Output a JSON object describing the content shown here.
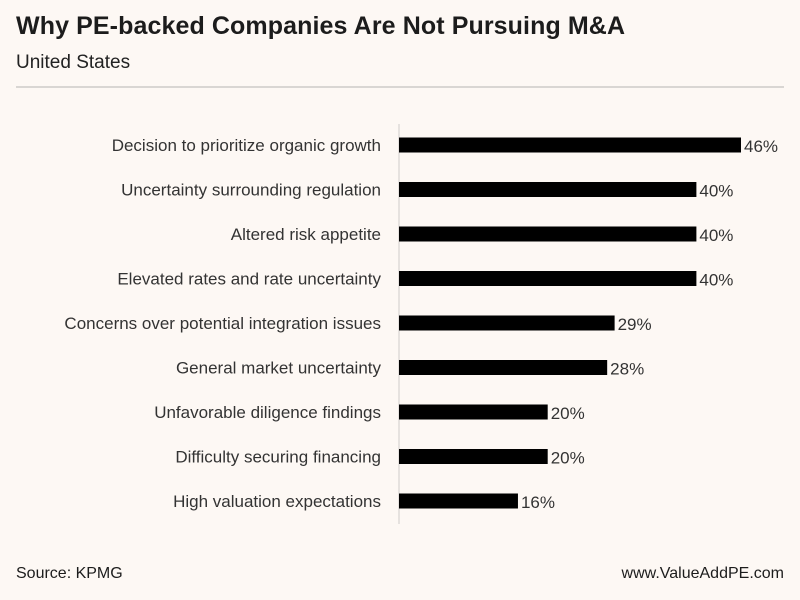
{
  "header": {
    "title": "Why PE-backed Companies Are Not Pursuing M&A",
    "subtitle": "United States"
  },
  "footer": {
    "source": "Source: KPMG",
    "website": "www.ValueAddPE.com"
  },
  "colors": {
    "bar": "#000000",
    "axis": "#d0cdca",
    "text": "#333333",
    "background": "#fdf8f4"
  },
  "chart_data": {
    "type": "bar",
    "orientation": "horizontal",
    "title": "Why PE-backed Companies Are Not Pursuing M&A",
    "subtitle": "United States",
    "xlabel": "",
    "ylabel": "",
    "xlim": [
      0,
      46
    ],
    "grid": false,
    "categories": [
      "Decision to prioritize organic growth",
      "Uncertainty surrounding regulation",
      "Altered risk appetite",
      "Elevated rates and rate uncertainty",
      "Concerns over potential integration issues",
      "General market uncertainty",
      "Unfavorable diligence findings",
      "Difficulty securing financing",
      "High valuation expectations"
    ],
    "values": [
      46,
      40,
      40,
      40,
      29,
      28,
      20,
      20,
      16
    ],
    "value_labels": [
      "46%",
      "40%",
      "40%",
      "40%",
      "29%",
      "28%",
      "20%",
      "20%",
      "16%"
    ]
  }
}
